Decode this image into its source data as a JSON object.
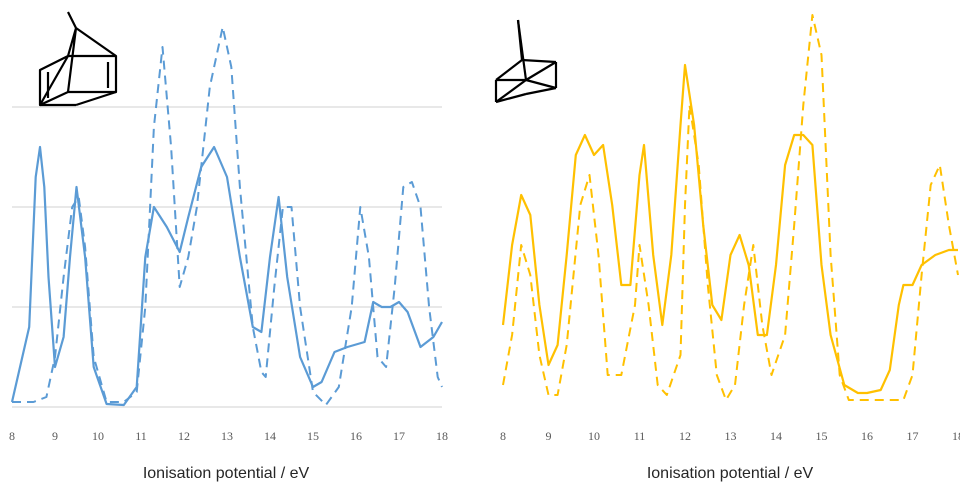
{
  "colors": {
    "left": "#5b9bd5",
    "right": "#ffc000",
    "grid": "#d0d0d0"
  },
  "molecules": {
    "left": "norbornadiene-structure",
    "right": "quadricyclane-structure"
  },
  "chart_data": [
    {
      "type": "line",
      "title": "",
      "xlabel": "Ionisation potential / eV",
      "ylabel": "",
      "xlim": [
        8,
        18
      ],
      "ylim": [
        0,
        4
      ],
      "grid": true,
      "legend": "none",
      "xticks": [
        "8",
        "9",
        "10",
        "11",
        "12",
        "13",
        "14",
        "15",
        "16",
        "17",
        "18"
      ],
      "series": [
        {
          "style": "solid",
          "x": [
            8.0,
            8.4,
            8.55,
            8.65,
            8.75,
            8.85,
            9.0,
            9.2,
            9.35,
            9.5,
            9.7,
            9.9,
            10.2,
            10.6,
            10.9,
            11.1,
            11.3,
            11.6,
            11.9,
            12.1,
            12.4,
            12.7,
            13.0,
            13.3,
            13.6,
            13.8,
            14.0,
            14.2,
            14.4,
            14.7,
            15.0,
            15.2,
            15.5,
            15.8,
            16.2,
            16.4,
            16.6,
            16.8,
            17.0,
            17.2,
            17.5,
            17.8,
            18.0
          ],
          "y": [
            0.05,
            0.8,
            2.3,
            2.6,
            2.2,
            1.3,
            0.4,
            0.7,
            1.5,
            2.2,
            1.5,
            0.4,
            0.03,
            0.02,
            0.2,
            1.5,
            2.0,
            1.8,
            1.55,
            1.9,
            2.4,
            2.6,
            2.3,
            1.5,
            0.8,
            0.75,
            1.5,
            2.1,
            1.3,
            0.5,
            0.2,
            0.25,
            0.55,
            0.6,
            0.65,
            1.05,
            1.0,
            1.0,
            1.05,
            0.95,
            0.6,
            0.7,
            0.85
          ]
        },
        {
          "style": "dashed",
          "x": [
            8.0,
            8.5,
            8.8,
            9.0,
            9.2,
            9.4,
            9.55,
            9.7,
            9.9,
            10.2,
            10.6,
            10.9,
            11.1,
            11.3,
            11.5,
            11.7,
            11.9,
            12.1,
            12.3,
            12.6,
            12.9,
            13.1,
            13.3,
            13.6,
            13.8,
            13.9,
            14.1,
            14.3,
            14.5,
            14.7,
            15.0,
            15.3,
            15.6,
            15.9,
            16.1,
            16.3,
            16.5,
            16.7,
            16.9,
            17.1,
            17.3,
            17.5,
            17.7,
            17.9,
            18.0
          ],
          "y": [
            0.05,
            0.05,
            0.1,
            0.5,
            1.3,
            2.0,
            2.1,
            1.6,
            0.5,
            0.05,
            0.05,
            0.15,
            1.0,
            2.8,
            3.6,
            2.6,
            1.2,
            1.5,
            2.0,
            3.2,
            3.8,
            3.4,
            2.2,
            0.8,
            0.35,
            0.3,
            1.2,
            2.0,
            2.0,
            1.0,
            0.15,
            0.02,
            0.2,
            1.0,
            2.0,
            1.5,
            0.5,
            0.4,
            1.2,
            2.2,
            2.25,
            2.0,
            1.0,
            0.3,
            0.2
          ]
        }
      ]
    },
    {
      "type": "line",
      "title": "",
      "xlabel": "Ionisation potential / eV",
      "ylabel": "",
      "xlim": [
        8,
        18
      ],
      "ylim": [
        0,
        4
      ],
      "grid": false,
      "legend": "none",
      "xticks": [
        "8",
        "9",
        "10",
        "11",
        "12",
        "13",
        "14",
        "15",
        "16",
        "17",
        "18"
      ],
      "series": [
        {
          "style": "solid",
          "x": [
            8.0,
            8.2,
            8.4,
            8.6,
            8.8,
            9.0,
            9.2,
            9.4,
            9.6,
            9.8,
            10.0,
            10.2,
            10.4,
            10.6,
            10.8,
            11.0,
            11.1,
            11.3,
            11.5,
            11.7,
            11.9,
            12.0,
            12.2,
            12.4,
            12.6,
            12.8,
            13.0,
            13.2,
            13.4,
            13.6,
            13.8,
            14.0,
            14.2,
            14.4,
            14.6,
            14.8,
            15.0,
            15.2,
            15.5,
            15.8,
            16.0,
            16.3,
            16.5,
            16.7,
            16.8,
            17.0,
            17.2,
            17.5,
            17.8,
            18.0
          ],
          "y": [
            0.8,
            1.6,
            2.1,
            1.9,
            1.0,
            0.4,
            0.6,
            1.5,
            2.5,
            2.7,
            2.5,
            2.6,
            2.0,
            1.2,
            1.2,
            2.3,
            2.6,
            1.5,
            0.8,
            1.5,
            2.8,
            3.4,
            2.8,
            1.8,
            1.0,
            0.85,
            1.5,
            1.7,
            1.4,
            0.7,
            0.7,
            1.4,
            2.4,
            2.7,
            2.7,
            2.6,
            1.4,
            0.7,
            0.2,
            0.12,
            0.12,
            0.15,
            0.35,
            1.0,
            1.2,
            1.2,
            1.4,
            1.5,
            1.55,
            1.55
          ]
        },
        {
          "style": "dashed",
          "x": [
            8.0,
            8.2,
            8.4,
            8.6,
            8.8,
            9.0,
            9.2,
            9.4,
            9.7,
            9.9,
            10.1,
            10.3,
            10.6,
            10.9,
            11.0,
            11.2,
            11.4,
            11.6,
            11.9,
            12.0,
            12.1,
            12.3,
            12.5,
            12.7,
            12.9,
            13.1,
            13.3,
            13.5,
            13.7,
            13.9,
            14.2,
            14.4,
            14.6,
            14.8,
            15.0,
            15.2,
            15.4,
            15.6,
            16.0,
            16.5,
            16.8,
            17.0,
            17.2,
            17.4,
            17.6,
            17.8,
            18.0
          ],
          "y": [
            0.2,
            0.7,
            1.6,
            1.3,
            0.5,
            0.1,
            0.1,
            0.6,
            2.0,
            2.3,
            1.5,
            0.3,
            0.3,
            1.0,
            1.6,
            1.0,
            0.2,
            0.1,
            0.5,
            2.0,
            3.0,
            2.4,
            1.2,
            0.3,
            0.05,
            0.2,
            1.0,
            1.6,
            0.8,
            0.3,
            0.7,
            1.8,
            3.0,
            3.9,
            3.5,
            1.5,
            0.3,
            0.05,
            0.05,
            0.05,
            0.05,
            0.3,
            1.3,
            2.2,
            2.4,
            1.8,
            1.3
          ]
        }
      ]
    }
  ]
}
